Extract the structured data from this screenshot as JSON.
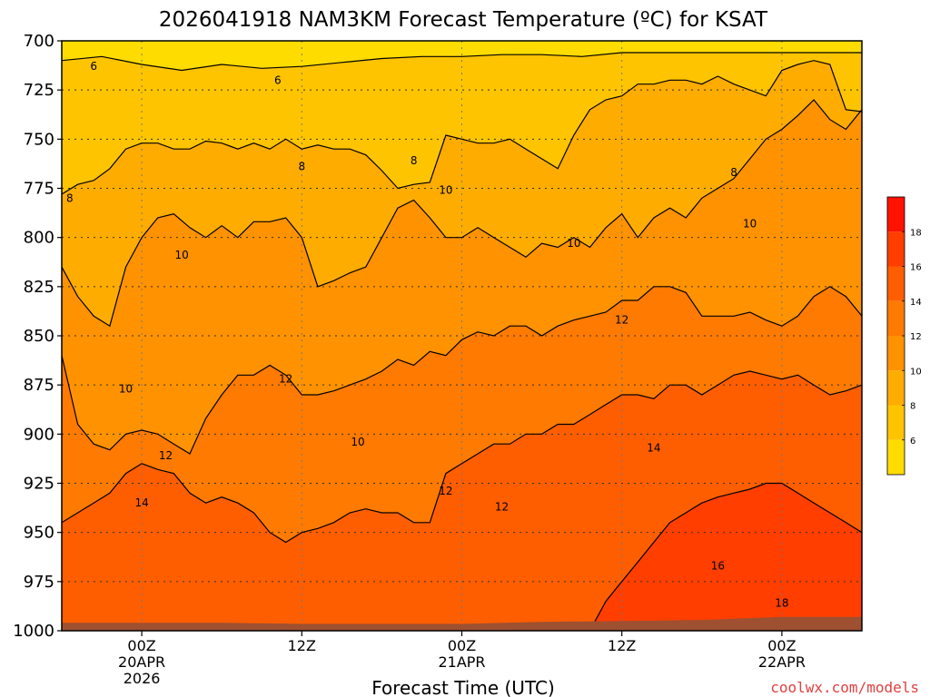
{
  "chart_data": {
    "type": "heatmap",
    "title": "2026041918 NAM3KM Forecast Temperature (ºC) for KSAT",
    "xlabel": "Forecast Time (UTC)",
    "ylabel": "",
    "credit": "coolwx.com/models",
    "x_range_hours": [
      -5,
      45
    ],
    "y_range_hpa": [
      700,
      1000
    ],
    "y_ticks": [
      700,
      725,
      750,
      775,
      800,
      825,
      850,
      875,
      900,
      925,
      950,
      975,
      1000
    ],
    "x_ticks": [
      {
        "hour": 0,
        "lines": [
          "00Z",
          "20APR",
          "2026"
        ]
      },
      {
        "hour": 10,
        "lines": [
          "12Z"
        ]
      },
      {
        "hour": 20,
        "lines": [
          "00Z",
          "21APR"
        ]
      },
      {
        "hour": 30,
        "lines": [
          "12Z"
        ]
      },
      {
        "hour": 40,
        "lines": [
          "00Z",
          "22APR"
        ]
      }
    ],
    "colorbar": {
      "levels": [
        4,
        6,
        8,
        10,
        12,
        14,
        16,
        18,
        20
      ],
      "labels": [
        6,
        8,
        10,
        12,
        14,
        16,
        18
      ],
      "colors": [
        "#ffdc00",
        "#ffc400",
        "#ffac00",
        "#ff9200",
        "#ff7a00",
        "#ff5e00",
        "#ff3e00",
        "#ff1200"
      ]
    },
    "ground_color": "#9e5030",
    "surface_pressure_hpa": [
      [
        -5,
        996
      ],
      [
        5,
        996
      ],
      [
        10,
        996.5
      ],
      [
        15,
        996.5
      ],
      [
        20,
        996.5
      ],
      [
        25,
        995.5
      ],
      [
        30,
        995
      ],
      [
        35,
        994.5
      ],
      [
        40,
        993
      ],
      [
        45,
        993
      ]
    ],
    "isotherms": [
      {
        "temp": 6,
        "pressure_hpa": [
          710,
          708,
          712,
          715,
          712,
          714,
          713,
          711,
          709,
          708,
          708,
          707,
          707,
          708,
          706,
          706,
          706,
          706,
          706,
          706,
          706
        ]
      },
      {
        "temp": 8,
        "pressure_hpa": [
          778,
          773,
          771,
          765,
          755,
          752,
          752,
          755,
          755,
          751,
          752,
          755,
          752,
          755,
          750,
          755,
          753,
          755,
          755,
          758,
          766,
          775,
          773,
          772,
          748,
          750,
          752,
          752,
          750,
          755,
          760,
          765,
          748,
          735,
          730,
          728,
          722,
          722,
          720,
          720,
          722,
          718,
          722,
          725,
          728,
          715,
          712,
          710,
          712,
          735,
          736
        ]
      },
      {
        "temp": 10,
        "pressure_hpa": [
          815,
          830,
          840,
          845,
          815,
          800,
          790,
          788,
          795,
          800,
          794,
          800,
          792,
          792,
          790,
          800,
          825,
          822,
          818,
          815,
          800,
          785,
          781,
          790,
          800,
          800,
          795,
          800,
          805,
          810,
          803,
          805,
          800,
          805,
          795,
          788,
          800,
          790,
          785,
          790,
          780,
          775,
          770,
          760,
          750,
          745,
          738,
          730,
          740,
          745,
          735
        ]
      },
      {
        "temp": 12,
        "pressure_hpa": [
          860,
          895,
          905,
          908,
          900,
          898,
          900,
          905,
          910,
          892,
          880,
          870,
          870,
          865,
          870,
          880,
          880,
          878,
          875,
          872,
          868,
          862,
          865,
          858,
          860,
          852,
          848,
          850,
          845,
          845,
          850,
          845,
          842,
          840,
          838,
          832,
          832,
          825,
          825,
          828,
          840,
          840,
          840,
          838,
          842,
          845,
          840,
          830,
          825,
          830,
          840
        ]
      },
      {
        "temp": 14,
        "pressure_hpa": [
          945,
          940,
          935,
          930,
          920,
          915,
          918,
          920,
          930,
          935,
          932,
          935,
          940,
          950,
          955,
          950,
          948,
          945,
          940,
          938,
          940,
          940,
          945,
          945,
          920,
          915,
          910,
          905,
          905,
          900,
          900,
          895,
          895,
          890,
          885,
          880,
          880,
          882,
          875,
          875,
          880,
          875,
          870,
          868,
          870,
          872,
          870,
          875,
          880,
          878,
          875
        ]
      },
      {
        "temp": 16,
        "pressure_hpa": [
          1000,
          1000,
          1000,
          1000,
          1000,
          1000,
          1000,
          1000,
          1000,
          1000,
          1000,
          1000,
          1000,
          1000,
          1000,
          1000,
          1000,
          1000,
          1000,
          1000,
          1000,
          1000,
          1000,
          1000,
          1000,
          1000,
          1000,
          1000,
          1000,
          1000,
          1000,
          1000,
          1000,
          1000,
          985,
          975,
          965,
          955,
          945,
          940,
          935,
          932,
          930,
          928,
          925,
          925,
          930,
          935,
          940,
          945,
          950
        ]
      }
    ],
    "contour_labels": [
      {
        "text": "6",
        "hour": -3,
        "hpa": 713
      },
      {
        "text": "6",
        "hour": 8.5,
        "hpa": 720
      },
      {
        "text": "8",
        "hour": -4.5,
        "hpa": 780
      },
      {
        "text": "8",
        "hour": 10,
        "hpa": 764
      },
      {
        "text": "8",
        "hour": 17,
        "hpa": 761
      },
      {
        "text": "8",
        "hour": 37,
        "hpa": 767
      },
      {
        "text": "10",
        "hour": 2.5,
        "hpa": 809
      },
      {
        "text": "10",
        "hour": 19,
        "hpa": 776
      },
      {
        "text": "10",
        "hour": 27,
        "hpa": 803
      },
      {
        "text": "10",
        "hour": -1,
        "hpa": 877
      },
      {
        "text": "10",
        "hour": 13.5,
        "hpa": 904
      },
      {
        "text": "10",
        "hour": 38,
        "hpa": 793
      },
      {
        "text": "12",
        "hour": 9,
        "hpa": 872
      },
      {
        "text": "12",
        "hour": 1.5,
        "hpa": 911
      },
      {
        "text": "12",
        "hour": 19,
        "hpa": 929
      },
      {
        "text": "12",
        "hour": 22.5,
        "hpa": 937
      },
      {
        "text": "12",
        "hour": 30,
        "hpa": 842
      },
      {
        "text": "14",
        "hour": 0,
        "hpa": 935
      },
      {
        "text": "14",
        "hour": 32,
        "hpa": 907
      },
      {
        "text": "16",
        "hour": 36,
        "hpa": 967
      },
      {
        "text": "18",
        "hour": 40,
        "hpa": 986
      }
    ]
  }
}
